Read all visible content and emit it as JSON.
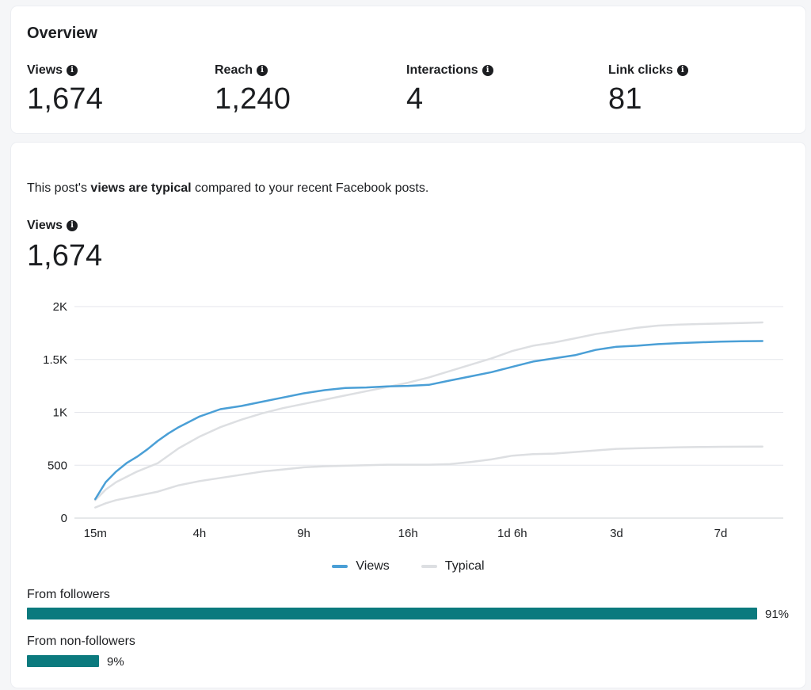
{
  "overview": {
    "title": "Overview",
    "metrics": [
      {
        "label": "Views",
        "value": "1,674"
      },
      {
        "label": "Reach",
        "value": "1,240"
      },
      {
        "label": "Interactions",
        "value": "4"
      },
      {
        "label": "Link clicks",
        "value": "81"
      }
    ]
  },
  "views_section": {
    "message_prefix": "This post's ",
    "message_bold": "views are typical",
    "message_suffix": " compared to your recent Facebook posts.",
    "label": "Views",
    "value": "1,674"
  },
  "chart_data": {
    "type": "line",
    "ylim": [
      0,
      2000
    ],
    "y_ticks": [
      0,
      500,
      1000,
      1500,
      2000
    ],
    "y_tick_labels": [
      "0",
      "500",
      "1K",
      "1.5K",
      "2K"
    ],
    "x_tick_labels": [
      "15m",
      "4h",
      "9h",
      "16h",
      "1d 6h",
      "3d",
      "7d"
    ],
    "x_tick_positions": [
      1,
      6,
      11,
      16,
      21,
      26,
      31
    ],
    "x_range": [
      0,
      34
    ],
    "grid": true,
    "legend_position": "bottom-center",
    "series": [
      {
        "name": "Typical",
        "color": "#dddfe2",
        "x": [
          1,
          1.5,
          2,
          3,
          4,
          5,
          6,
          7,
          8,
          9,
          10,
          11,
          12,
          13,
          14,
          15,
          16,
          17,
          18,
          19,
          20,
          21,
          22,
          23,
          24,
          25,
          26,
          27,
          28,
          29,
          30,
          31,
          32,
          33
        ],
        "values": [
          100,
          140,
          170,
          210,
          250,
          310,
          350,
          380,
          410,
          440,
          460,
          480,
          490,
          495,
          500,
          505,
          505,
          505,
          510,
          530,
          555,
          590,
          605,
          610,
          625,
          640,
          655,
          660,
          665,
          670,
          672,
          674,
          675,
          676
        ]
      },
      {
        "name": "Typical",
        "color": "#dddfe2",
        "x": [
          1,
          1.5,
          2,
          3,
          4,
          5,
          6,
          7,
          8,
          9,
          10,
          11,
          12,
          13,
          14,
          15,
          16,
          17,
          18,
          19,
          20,
          21,
          22,
          23,
          24,
          25,
          26,
          27,
          28,
          29,
          30,
          31,
          32,
          33
        ],
        "values": [
          170,
          270,
          340,
          440,
          520,
          660,
          770,
          860,
          930,
          990,
          1040,
          1080,
          1120,
          1160,
          1200,
          1240,
          1280,
          1330,
          1390,
          1450,
          1510,
          1580,
          1630,
          1660,
          1700,
          1740,
          1770,
          1800,
          1820,
          1830,
          1835,
          1840,
          1845,
          1850
        ]
      },
      {
        "name": "Views",
        "color": "#4a9fd6",
        "x": [
          1,
          1.5,
          2,
          2.5,
          3,
          3.5,
          4,
          4.5,
          5,
          5.5,
          6,
          7,
          8,
          9,
          10,
          11,
          12,
          13,
          14,
          15,
          16,
          17,
          18,
          19,
          20,
          21,
          22,
          23,
          24,
          25,
          26,
          27,
          28,
          29,
          30,
          31,
          32,
          33
        ],
        "values": [
          180,
          340,
          440,
          520,
          580,
          650,
          730,
          800,
          860,
          910,
          960,
          1030,
          1060,
          1100,
          1140,
          1180,
          1210,
          1230,
          1235,
          1245,
          1250,
          1260,
          1300,
          1340,
          1380,
          1430,
          1480,
          1510,
          1540,
          1590,
          1620,
          1630,
          1645,
          1655,
          1662,
          1668,
          1672,
          1674
        ]
      }
    ],
    "legend": [
      {
        "name": "Views",
        "color": "#4a9fd6"
      },
      {
        "name": "Typical",
        "color": "#dddfe2"
      }
    ]
  },
  "audience_split": [
    {
      "label": "From followers",
      "percent": 91,
      "percent_label": "91%"
    },
    {
      "label": "From non-followers",
      "percent": 9,
      "percent_label": "9%"
    }
  ],
  "colors": {
    "bar": "#0b7a7e",
    "views_line": "#4a9fd6",
    "typical_line": "#dddfe2"
  }
}
